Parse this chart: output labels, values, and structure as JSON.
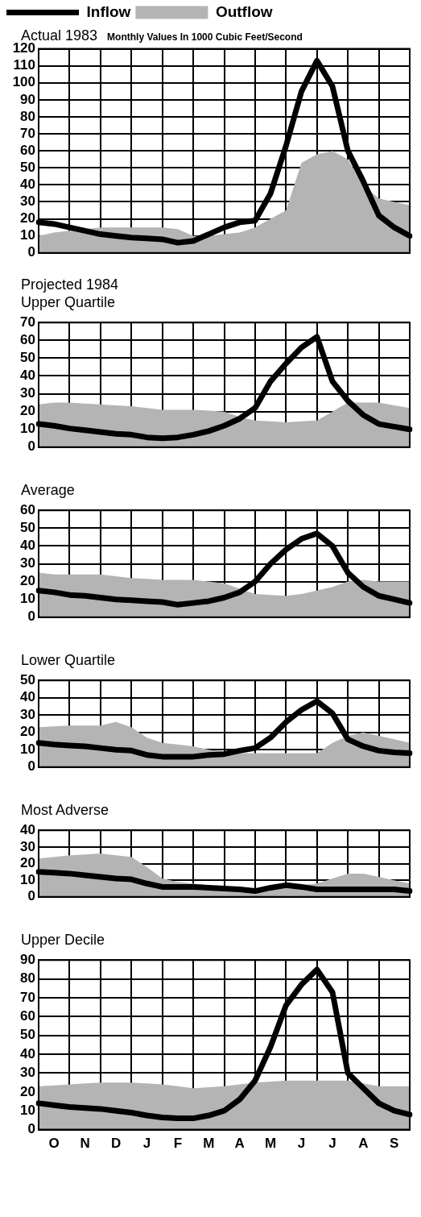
{
  "chart_data": [
    {
      "type": "line",
      "title": "Actual 1983",
      "subtitle": "Monthly Values In 1000 Cubic Feet/Second",
      "legend": "top left",
      "grid": true,
      "tick_labels": "y",
      "categories": [
        null,
        null,
        null,
        null,
        null,
        null,
        null,
        null,
        null,
        null,
        null,
        null,
        null,
        null,
        null,
        null,
        null,
        null,
        null,
        null,
        null,
        null,
        null,
        null,
        null
      ],
      "ylim": [
        0,
        120
      ],
      "yticks": [
        0,
        10,
        20,
        30,
        40,
        50,
        60,
        70,
        80,
        90,
        100,
        110,
        120
      ],
      "series": [
        {
          "name": "Inflow",
          "color": "#000000",
          "values": [
            18,
            17,
            15,
            13,
            11,
            10,
            9,
            8.5,
            8,
            6,
            7,
            11,
            15,
            18,
            19,
            35,
            63,
            95,
            113,
            98,
            60,
            42,
            22,
            15,
            10
          ]
        },
        {
          "name": "Outflow",
          "type": "area",
          "color": "#b4b4b4",
          "values": [
            10,
            12,
            13,
            14,
            15,
            15,
            15,
            15,
            15,
            14,
            10,
            10,
            11,
            12,
            15,
            20,
            25,
            53,
            58,
            60,
            55,
            40,
            32,
            30,
            28
          ]
        }
      ]
    },
    {
      "type": "line",
      "title": "Projected 1984",
      "subtitle": "Upper Quartile",
      "grid": true,
      "tick_labels": "y",
      "categories": [
        null,
        null,
        null,
        null,
        null,
        null,
        null,
        null,
        null,
        null,
        null,
        null,
        null,
        null,
        null,
        null,
        null,
        null,
        null,
        null,
        null,
        null,
        null,
        null,
        null
      ],
      "ylim": [
        0,
        70
      ],
      "yticks": [
        0,
        10,
        20,
        30,
        40,
        50,
        60,
        70
      ],
      "series": [
        {
          "color": "#000000",
          "values": [
            13,
            12,
            10.5,
            9.5,
            8.5,
            7.5,
            7,
            5.5,
            5,
            5.5,
            7,
            9,
            12,
            16,
            22,
            37,
            47,
            56,
            62,
            37,
            26,
            18,
            13,
            11.5,
            10
          ]
        },
        {
          "type": "area",
          "color": "#b4b4b4",
          "values": [
            24,
            25,
            25,
            24.5,
            24,
            23.5,
            23,
            22,
            21,
            21,
            21,
            20.5,
            20,
            17,
            15,
            14.5,
            14,
            14.5,
            15,
            20,
            25,
            25,
            25,
            23.5,
            22
          ]
        }
      ]
    },
    {
      "type": "line",
      "title": "Average",
      "grid": true,
      "tick_labels": "y",
      "categories": [
        null,
        null,
        null,
        null,
        null,
        null,
        null,
        null,
        null,
        null,
        null,
        null,
        null,
        null,
        null,
        null,
        null,
        null,
        null,
        null,
        null,
        null,
        null,
        null,
        null
      ],
      "ylim": [
        0,
        60
      ],
      "yticks": [
        0,
        10,
        20,
        30,
        40,
        50,
        60
      ],
      "series": [
        {
          "color": "#000000",
          "values": [
            15,
            14,
            12.5,
            12,
            11,
            10,
            9.5,
            9,
            8.5,
            7,
            8,
            9,
            11,
            14,
            20,
            30,
            38,
            44,
            47,
            40,
            25,
            17,
            12,
            10,
            8
          ]
        },
        {
          "type": "area",
          "color": "#b4b4b4",
          "values": [
            25,
            24,
            24,
            24,
            24,
            23,
            22,
            21.5,
            21,
            21,
            21,
            20,
            19,
            16,
            13,
            12.5,
            12,
            13,
            15,
            17,
            20,
            21,
            20,
            20,
            20
          ]
        }
      ]
    },
    {
      "type": "line",
      "title": "Lower Quartile",
      "grid": true,
      "tick_labels": "y",
      "categories": [
        null,
        null,
        null,
        null,
        null,
        null,
        null,
        null,
        null,
        null,
        null,
        null,
        null,
        null,
        null,
        null,
        null,
        null,
        null,
        null,
        null,
        null,
        null,
        null,
        null
      ],
      "ylim": [
        0,
        50
      ],
      "yticks": [
        0,
        10,
        20,
        30,
        40,
        50
      ],
      "series": [
        {
          "color": "#000000",
          "values": [
            14,
            13,
            12.5,
            12,
            11,
            10,
            9.5,
            7,
            6,
            6,
            6,
            7,
            7.5,
            9.5,
            11,
            17,
            26,
            33,
            38,
            31,
            16,
            12,
            9.5,
            8.5,
            8
          ]
        },
        {
          "type": "area",
          "color": "#b4b4b4",
          "values": [
            23,
            23.5,
            24,
            24,
            24,
            26,
            23,
            17,
            14,
            13,
            12,
            10,
            9,
            8,
            8,
            8,
            8,
            8,
            8,
            14,
            18,
            20,
            18,
            16,
            14
          ]
        }
      ]
    },
    {
      "type": "line",
      "title": "Most Adverse",
      "grid": true,
      "tick_labels": "y",
      "categories": [
        null,
        null,
        null,
        null,
        null,
        null,
        null,
        null,
        null,
        null,
        null,
        null,
        null,
        null,
        null,
        null,
        null,
        null,
        null,
        null,
        null,
        null,
        null,
        null,
        null
      ],
      "ylim": [
        0,
        40
      ],
      "yticks": [
        0,
        10,
        20,
        30,
        40
      ],
      "series": [
        {
          "color": "#000000",
          "values": [
            15,
            14.5,
            14,
            13,
            12,
            11,
            10.5,
            8,
            6,
            6,
            6,
            5.5,
            5,
            4.5,
            3.5,
            5.5,
            7,
            6,
            4.5,
            4.5,
            4.5,
            4.5,
            4.5,
            4.5,
            3.5
          ]
        },
        {
          "type": "area",
          "color": "#b4b4b4",
          "values": [
            23,
            24,
            25,
            25.5,
            26,
            25,
            24,
            18,
            11,
            9,
            8,
            7,
            6,
            5,
            4,
            5,
            6,
            7,
            8,
            11,
            14,
            14,
            12,
            10,
            8
          ]
        }
      ]
    },
    {
      "type": "line",
      "title": "Upper Decile",
      "grid": true,
      "categories": [
        null,
        "O",
        null,
        "N",
        null,
        "D",
        null,
        "J",
        null,
        "F",
        null,
        "M",
        null,
        "A",
        null,
        "M",
        null,
        "J",
        null,
        "J",
        null,
        "A",
        null,
        "S",
        null
      ],
      "ylim": [
        0,
        90
      ],
      "yticks": [
        0,
        10,
        20,
        30,
        40,
        50,
        60,
        70,
        80,
        90
      ],
      "series": [
        {
          "color": "#000000",
          "values": [
            14,
            13,
            12,
            11.5,
            11,
            10,
            9,
            7.5,
            6.5,
            6,
            6,
            7.5,
            10,
            16,
            26,
            44,
            66,
            77,
            85,
            73,
            30,
            22,
            14,
            10,
            8
          ]
        },
        {
          "type": "area",
          "color": "#b4b4b4",
          "values": [
            23,
            23.5,
            24,
            24.5,
            25,
            25,
            25,
            24.5,
            24,
            23,
            22,
            22.5,
            23,
            24,
            25,
            25.5,
            26,
            26,
            26,
            26,
            26,
            24.5,
            23,
            23,
            23
          ]
        }
      ]
    }
  ]
}
